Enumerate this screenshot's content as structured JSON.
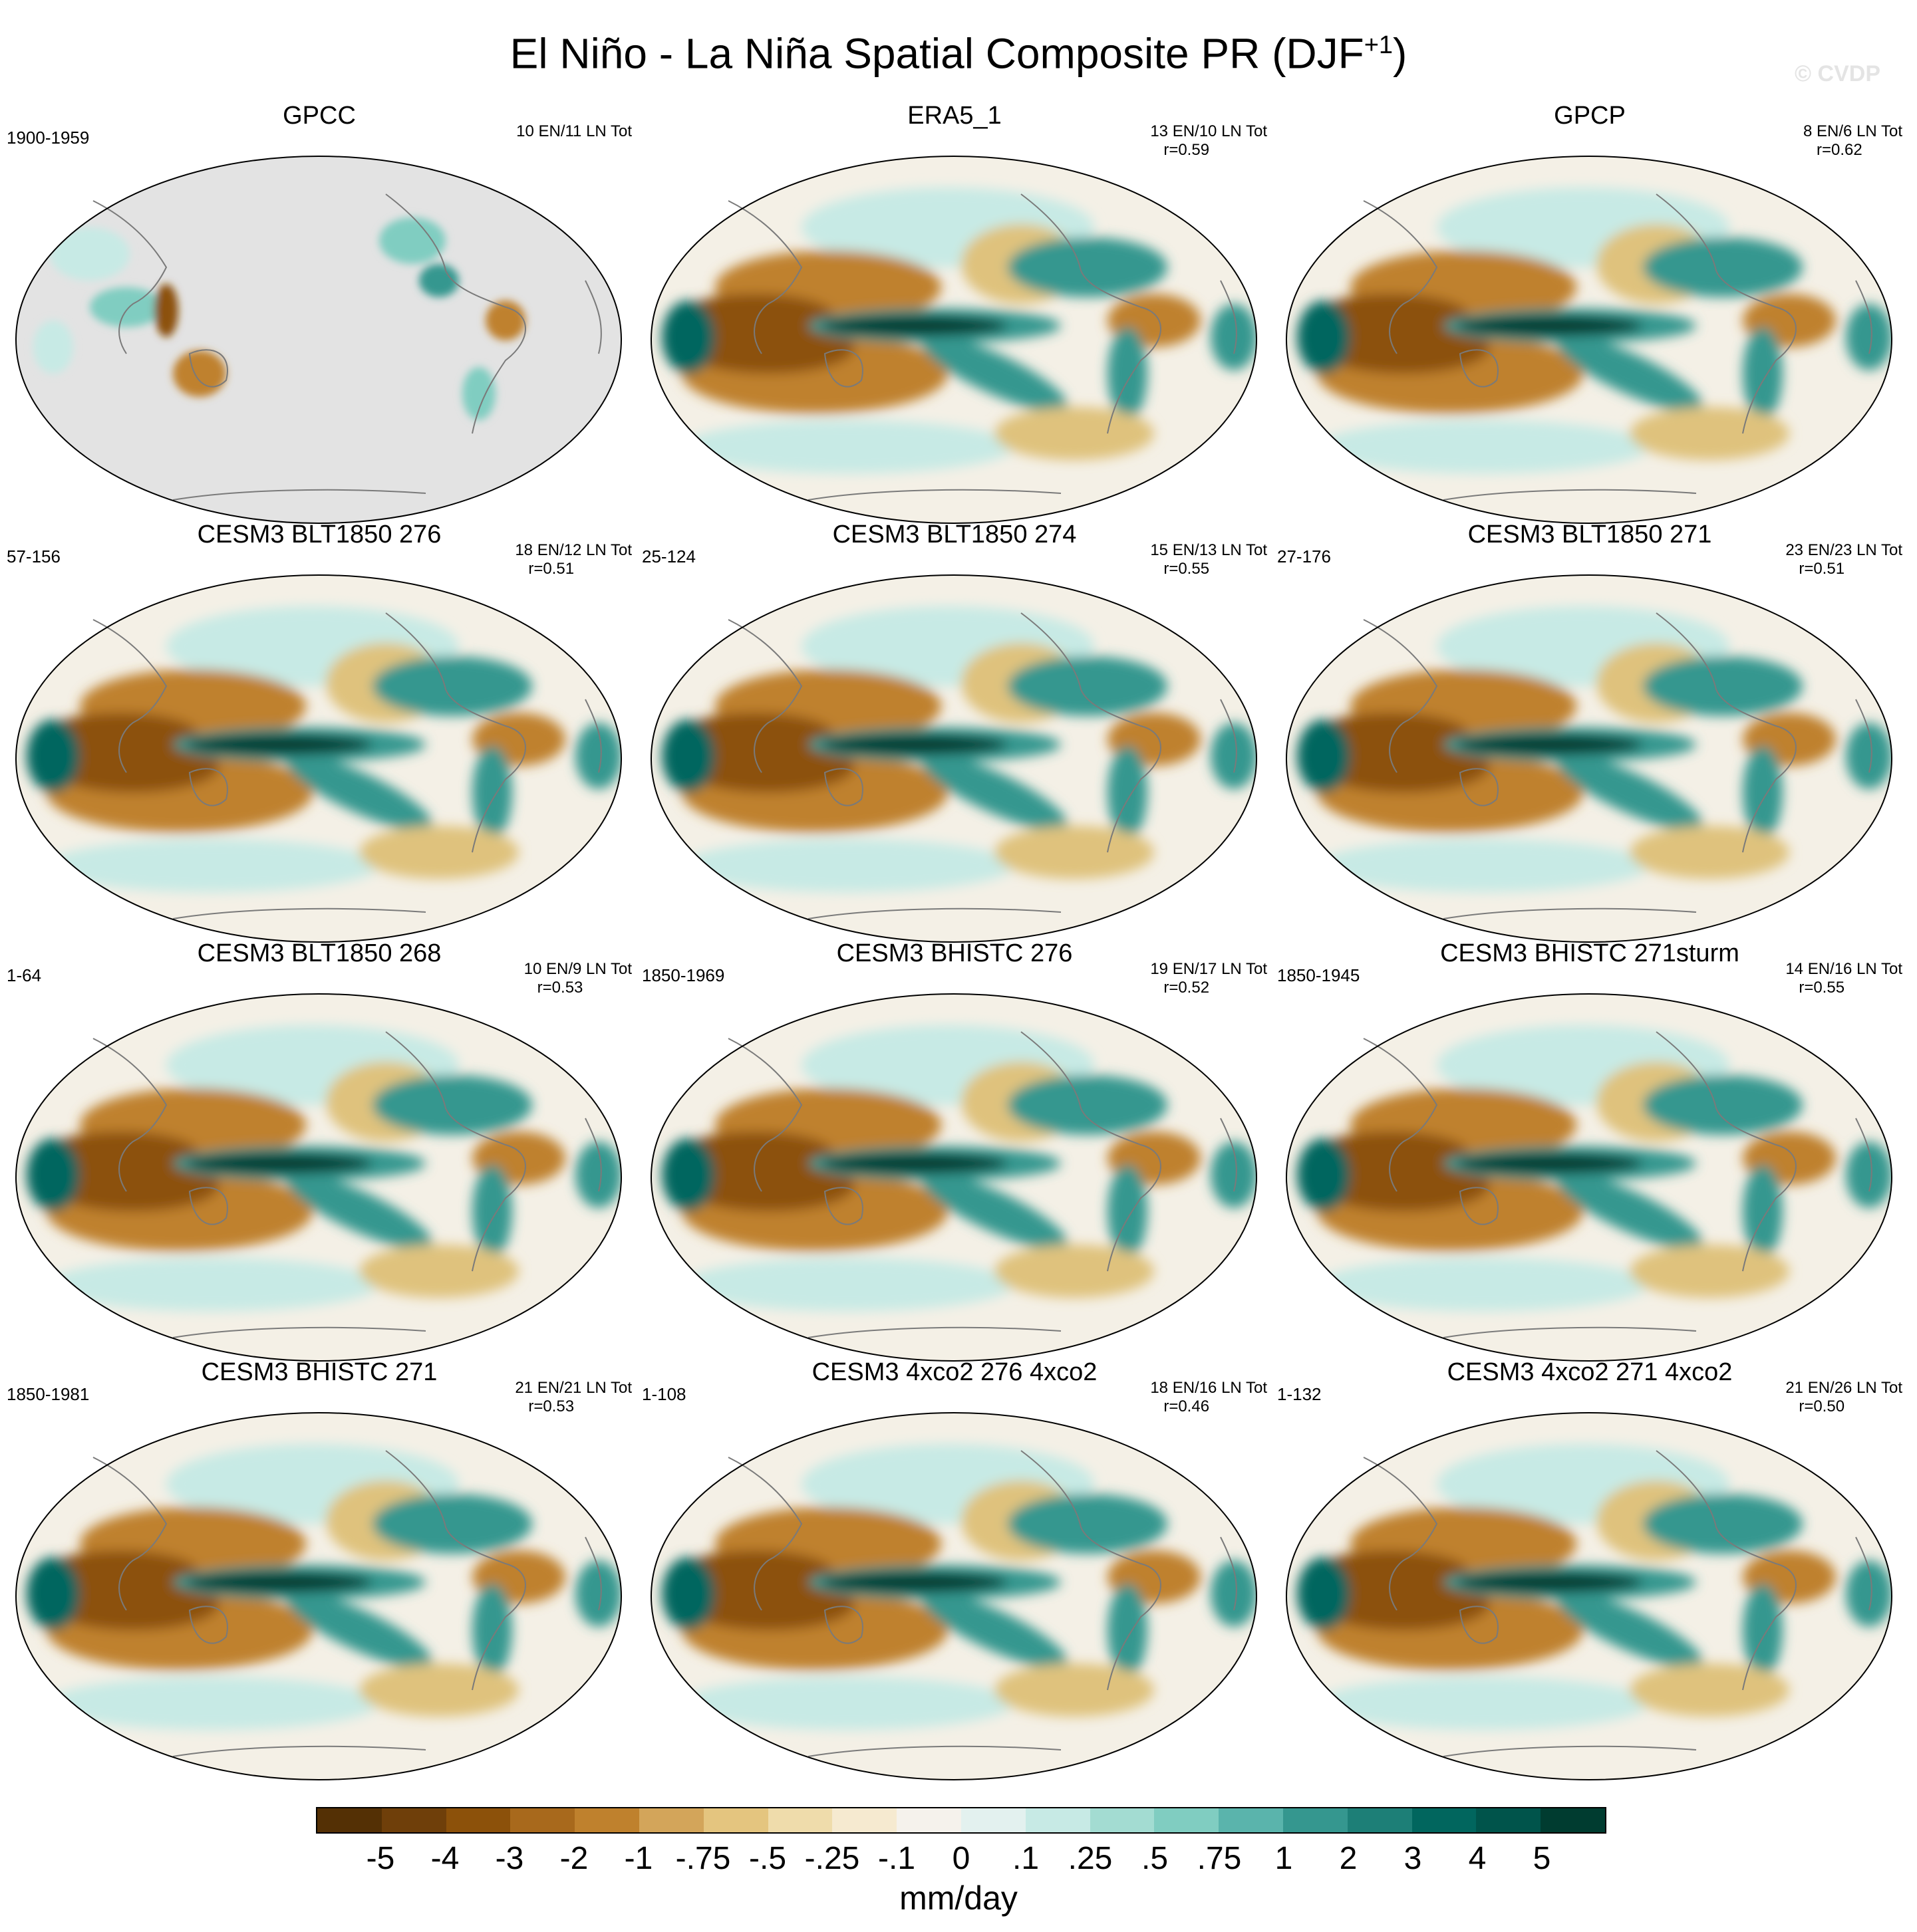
{
  "title": "El Niño - La Niña Spatial Composite PR (DJF",
  "title_sup": "+1",
  "title_close": ")",
  "watermark": "© CVDP",
  "panels": [
    {
      "name": "GPCC",
      "years": "1900-1959",
      "count": "10 EN/11 LN Tot",
      "r": "",
      "variant": "gpcc"
    },
    {
      "name": "ERA5_1",
      "years": "",
      "count": "13 EN/10 LN Tot",
      "r": "r=0.59",
      "variant": "obs"
    },
    {
      "name": "GPCP",
      "years": "",
      "count": "8 EN/6 LN Tot",
      "r": "r=0.62",
      "variant": "obs"
    },
    {
      "name": "CESM3 BLT1850 276",
      "years": "57-156",
      "count": "18 EN/12 LN Tot",
      "r": "r=0.51",
      "variant": "model"
    },
    {
      "name": "CESM3 BLT1850 274",
      "years": "25-124",
      "count": "15 EN/13 LN Tot",
      "r": "r=0.55",
      "variant": "model"
    },
    {
      "name": "CESM3 BLT1850 271",
      "years": "27-176",
      "count": "23 EN/23 LN Tot",
      "r": "r=0.51",
      "variant": "model"
    },
    {
      "name": "CESM3 BLT1850 268",
      "years": "1-64",
      "count": "10 EN/9 LN Tot",
      "r": "r=0.53",
      "variant": "model"
    },
    {
      "name": "CESM3 BHISTC 276",
      "years": "1850-1969",
      "count": "19 EN/17 LN Tot",
      "r": "r=0.52",
      "variant": "model"
    },
    {
      "name": "CESM3 BHISTC 271sturm",
      "years": "1850-1945",
      "count": "14 EN/16 LN Tot",
      "r": "r=0.55",
      "variant": "model"
    },
    {
      "name": "CESM3 BHISTC 271",
      "years": "1850-1981",
      "count": "21 EN/21 LN Tot",
      "r": "r=0.53",
      "variant": "model"
    },
    {
      "name": "CESM3 4xco2 276 4xco2",
      "years": "1-108",
      "count": "18 EN/16 LN Tot",
      "r": "r=0.46",
      "variant": "model"
    },
    {
      "name": "CESM3 4xco2 271 4xco2",
      "years": "1-132",
      "count": "21 EN/26 LN Tot",
      "r": "r=0.50",
      "variant": "model"
    }
  ],
  "colorbar": {
    "colors": [
      "#543005",
      "#6f3f0a",
      "#8c510a",
      "#a8691c",
      "#bf812d",
      "#d3a55a",
      "#e4c57f",
      "#efdcab",
      "#f6ead0",
      "#f5f2ec",
      "#e3f1ef",
      "#c7eae5",
      "#a3dcd2",
      "#80cdc1",
      "#5ab4ac",
      "#35978f",
      "#1d7f77",
      "#01665e",
      "#00544b",
      "#003c30"
    ],
    "labels": [
      "-5",
      "-4",
      "-3",
      "-2",
      "-1",
      "-.75",
      "-.5",
      "-.25",
      "-.1",
      "0",
      ".1",
      ".25",
      ".5",
      ".75",
      "1",
      "2",
      "3",
      "4",
      "5"
    ],
    "units": "mm/day"
  }
}
